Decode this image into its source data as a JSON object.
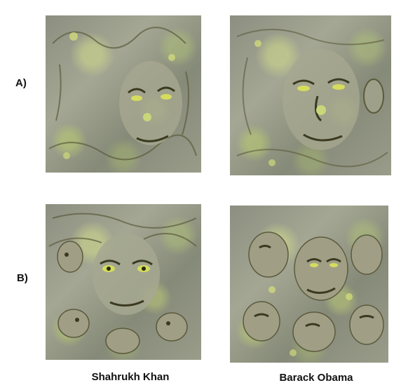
{
  "rows": [
    {
      "label": "A)"
    },
    {
      "label": "B)"
    }
  ],
  "columns": [
    {
      "label": "Shahrukh Khan"
    },
    {
      "label": "Barack Obama"
    }
  ],
  "palette": {
    "base": "#9a9c8a",
    "highlight": "#c9d67a",
    "shadow": "#4a4a2a",
    "accent_yellow": "#d8e060"
  },
  "panels": [
    {
      "row": "A)",
      "column": "Shahrukh Khan",
      "content": "deep-dream face visualization"
    },
    {
      "row": "A)",
      "column": "Barack Obama",
      "content": "deep-dream face visualization"
    },
    {
      "row": "B)",
      "column": "Shahrukh Khan",
      "content": "deep-dream face visualization"
    },
    {
      "row": "B)",
      "column": "Barack Obama",
      "content": "deep-dream face visualization"
    }
  ]
}
